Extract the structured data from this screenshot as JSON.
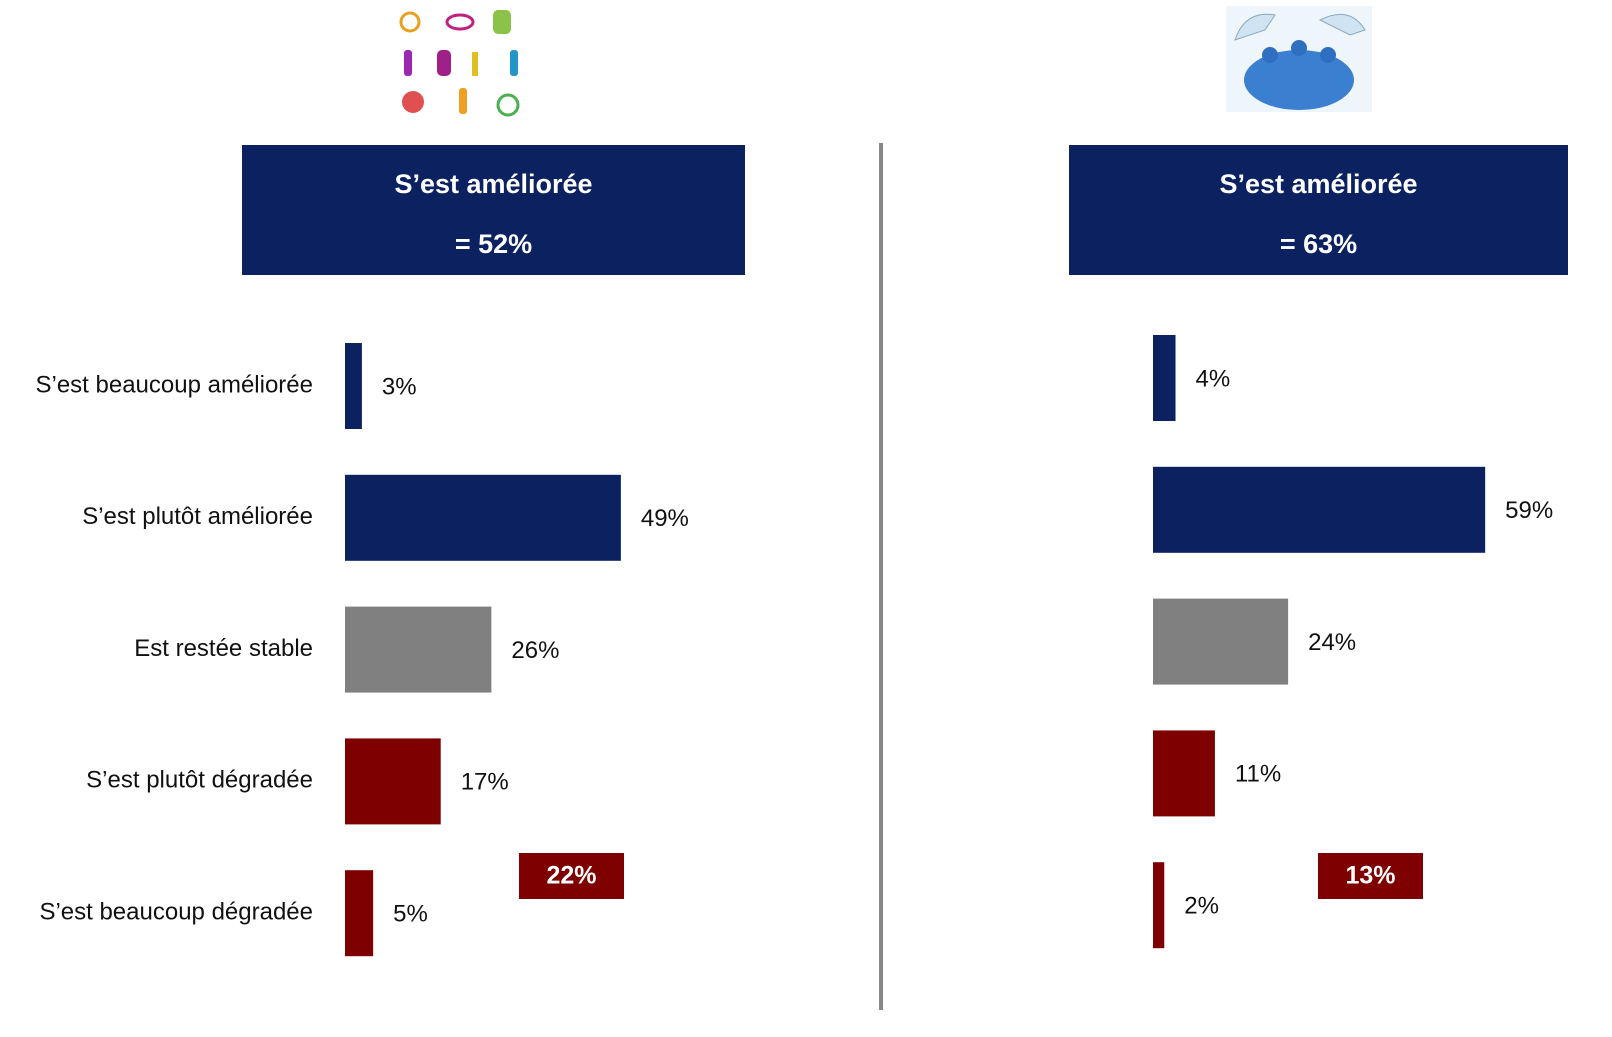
{
  "chart_data": [
    {
      "type": "bar",
      "orientation": "horizontal",
      "header_title": "S’est améliorée",
      "header_value": "= 52%",
      "categories": [
        "S’est beaucoup améliorée",
        "S’est plutôt améliorée",
        "Est restée stable",
        "S’est plutôt dégradée",
        "S’est beaucoup dégradée"
      ],
      "values": [
        3,
        49,
        26,
        17,
        5
      ],
      "value_labels": [
        "3%",
        "49%",
        "26%",
        "17%",
        "5%"
      ],
      "colors": [
        "#0b2160",
        "#0b2160",
        "#808080",
        "#7f0000",
        "#7f0000"
      ],
      "annotation": "22%",
      "annotation_color": "#7f0000",
      "header_color": "#0b2160"
    },
    {
      "type": "bar",
      "orientation": "horizontal",
      "header_title": "S’est améliorée",
      "header_value": "= 63%",
      "categories": [
        null,
        null,
        null,
        null,
        null
      ],
      "values": [
        4,
        59,
        24,
        11,
        2
      ],
      "value_labels": [
        "4%",
        "59%",
        "24%",
        "11%",
        "2%"
      ],
      "colors": [
        "#0b2160",
        "#0b2160",
        "#808080",
        "#7f0000",
        "#7f0000"
      ],
      "annotation": "13%",
      "annotation_color": "#7f0000",
      "header_color": "#0b2160"
    }
  ]
}
